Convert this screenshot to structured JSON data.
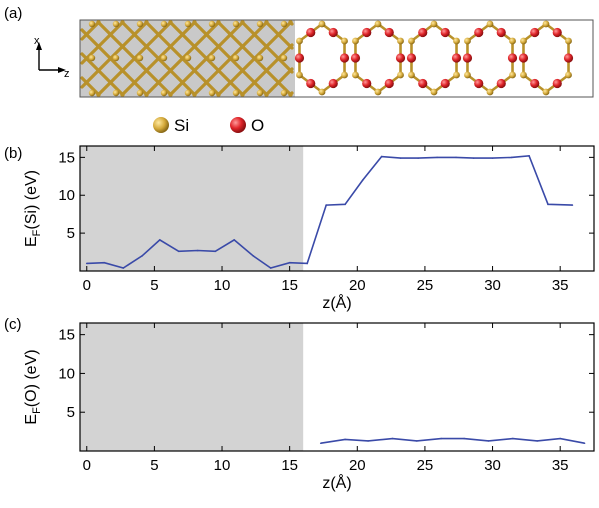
{
  "panels": {
    "a": "(a)",
    "b": "(b)",
    "c": "(c)"
  },
  "structure": {
    "axis_x": "x",
    "axis_z": "z",
    "legend": [
      {
        "label": "Si",
        "color": "#c9a43a"
      },
      {
        "label": "O",
        "color": "#e0252a"
      }
    ],
    "bond_color": "#b8912a",
    "shade_color": "#c9c9c9"
  },
  "colors": {
    "line": "#3a4aa8",
    "shade": "#d3d3d3",
    "frame": "#000000"
  },
  "chart_data": [
    {
      "type": "line",
      "panel": "(b)",
      "title": "",
      "xlabel": "z(Å)",
      "ylabel": "E_F(Si) (eV)",
      "xlim": [
        -0.5,
        37.5
      ],
      "ylim": [
        0,
        16.5
      ],
      "xticks": [
        0,
        5,
        10,
        15,
        20,
        25,
        30,
        35
      ],
      "yticks": [
        5,
        10,
        15
      ],
      "shaded_region": [
        -0.5,
        16
      ],
      "x": [
        0,
        1.3,
        2.7,
        4.1,
        5.4,
        6.8,
        8.2,
        9.5,
        10.9,
        12.3,
        13.6,
        15.0,
        16.3,
        17.7,
        19.1,
        20.4,
        21.8,
        23.2,
        24.5,
        25.9,
        27.3,
        28.6,
        30.0,
        31.4,
        32.7,
        34.1,
        35.9
      ],
      "series": [
        {
          "values": [
            1.0,
            1.1,
            0.4,
            2.0,
            4.1,
            2.6,
            2.7,
            2.6,
            4.1,
            2.0,
            0.4,
            1.1,
            1.0,
            8.7,
            8.8,
            12.0,
            15.1,
            14.9,
            14.9,
            15.0,
            15.0,
            14.9,
            14.9,
            15.0,
            15.2,
            8.8,
            8.7
          ]
        }
      ]
    },
    {
      "type": "line",
      "panel": "(c)",
      "title": "",
      "xlabel": "z(Å)",
      "ylabel": "E_F(O) (eV)",
      "xlim": [
        -0.5,
        37.5
      ],
      "ylim": [
        0,
        16.5
      ],
      "xticks": [
        0,
        5,
        10,
        15,
        20,
        25,
        30,
        35
      ],
      "yticks": [
        5,
        10,
        15
      ],
      "shaded_region": [
        -0.5,
        16
      ],
      "x": [
        17.3,
        19.1,
        20.8,
        22.6,
        24.4,
        26.2,
        27.9,
        29.7,
        31.5,
        33.3,
        35.0,
        36.8
      ],
      "series": [
        {
          "values": [
            1.0,
            1.5,
            1.3,
            1.6,
            1.3,
            1.6,
            1.6,
            1.3,
            1.6,
            1.3,
            1.6,
            1.0
          ]
        }
      ]
    }
  ]
}
